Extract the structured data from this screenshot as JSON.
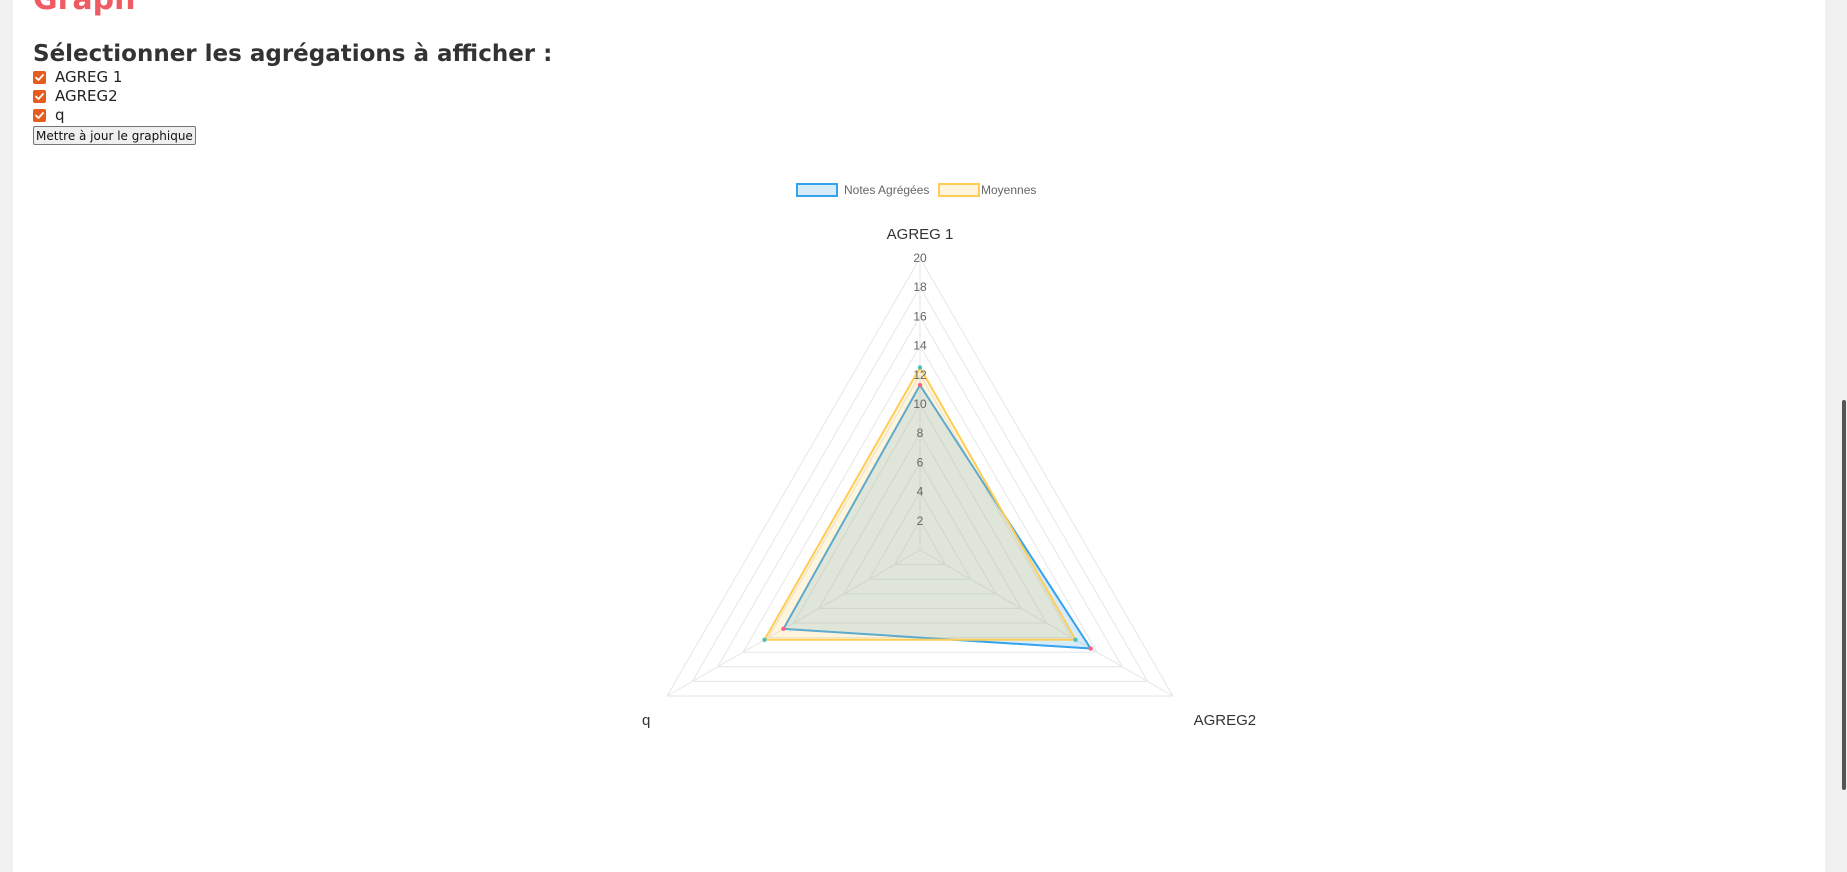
{
  "page": {
    "section_title": "Graph",
    "select_title": "Sélectionner les agrégations à afficher :",
    "checkboxes": [
      {
        "label": "AGREG 1",
        "checked": true
      },
      {
        "label": "AGREG2",
        "checked": true
      },
      {
        "label": "q",
        "checked": true
      }
    ],
    "update_button": "Mettre à jour le graphique"
  },
  "colors": {
    "title": "#f05a63",
    "checkbox": "#e65b1e",
    "series_blue": "#36a2eb",
    "series_yellow": "#ffcd56",
    "scrollbar_thumb": "#555555"
  },
  "chart_data": {
    "type": "radar",
    "labels": [
      "AGREG 1",
      "AGREG2",
      "q"
    ],
    "r_min": 0,
    "r_max": 20,
    "tick_step": 2,
    "ticks": [
      "2",
      "4",
      "6",
      "8",
      "10",
      "12",
      "14",
      "16",
      "18",
      "20"
    ],
    "grid": true,
    "legend_position": "top",
    "series": [
      {
        "name": "Notes Agrégées",
        "values": [
          11.3,
          13.5,
          10.8
        ],
        "color": "#36a2eb",
        "point_color": "#ff6384"
      },
      {
        "name": "Moyennes",
        "values": [
          12.5,
          12.3,
          12.3
        ],
        "color": "#ffcd56",
        "point_color": "#4bc0c0"
      }
    ]
  }
}
